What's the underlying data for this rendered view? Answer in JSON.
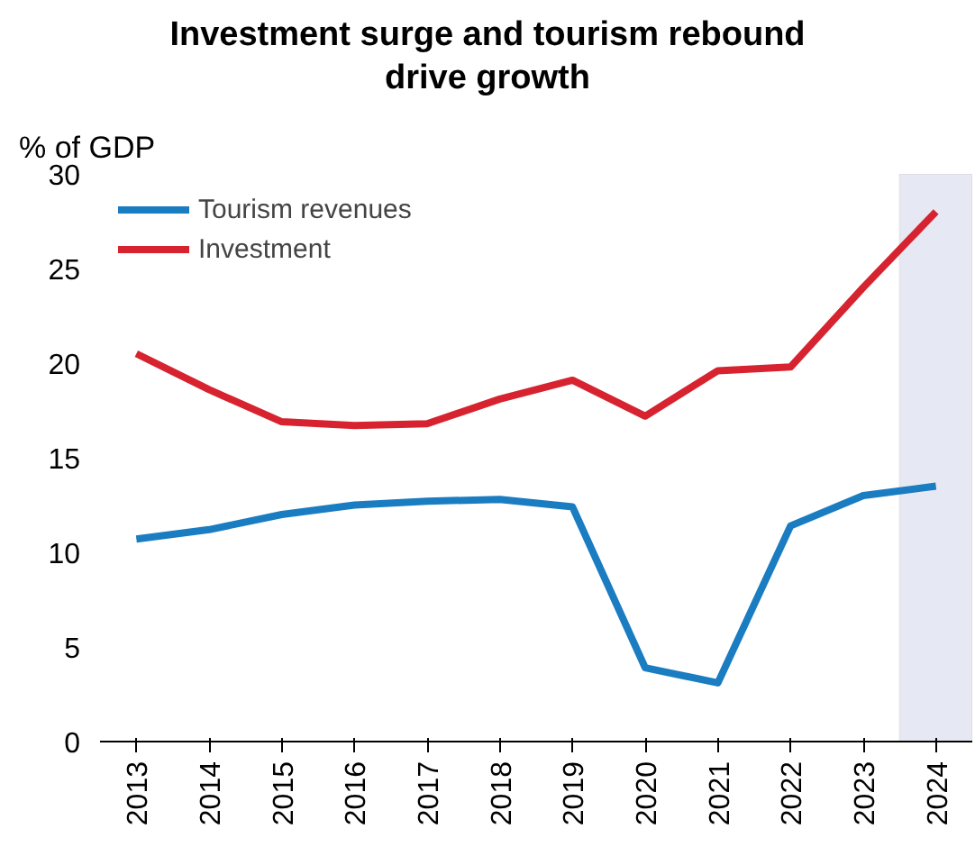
{
  "chart_data": {
    "type": "line",
    "title": "Investment surge and tourism rebound\ndrive growth",
    "ylabel": "% of GDP",
    "x": [
      2013,
      2014,
      2015,
      2016,
      2017,
      2018,
      2019,
      2020,
      2021,
      2022,
      2023,
      2024
    ],
    "series": [
      {
        "name": "Tourism revenues",
        "color": "#1a7cc1",
        "values": [
          10.7,
          11.2,
          12.0,
          12.5,
          12.7,
          12.8,
          12.4,
          3.9,
          3.1,
          11.4,
          13.0,
          13.5
        ]
      },
      {
        "name": "Investment",
        "color": "#d7232f",
        "values": [
          20.5,
          18.6,
          16.9,
          16.7,
          16.8,
          18.1,
          19.1,
          17.2,
          19.6,
          19.8,
          24.0,
          28.0
        ]
      }
    ],
    "xlim": [
      2012.5,
      2024.5
    ],
    "xticks": [
      2013,
      2014,
      2015,
      2016,
      2017,
      2018,
      2019,
      2020,
      2021,
      2022,
      2023,
      2024
    ],
    "ylim": [
      0,
      30
    ],
    "yticks": [
      0,
      5,
      10,
      15,
      20,
      25,
      30
    ],
    "bands": [
      {
        "axis": "x",
        "from": 2023.5,
        "to": 2024.5,
        "label": null,
        "color": "#e6e9f3"
      }
    ],
    "grid": false,
    "legend": "top left",
    "marker": "none",
    "line_style": "solid"
  }
}
